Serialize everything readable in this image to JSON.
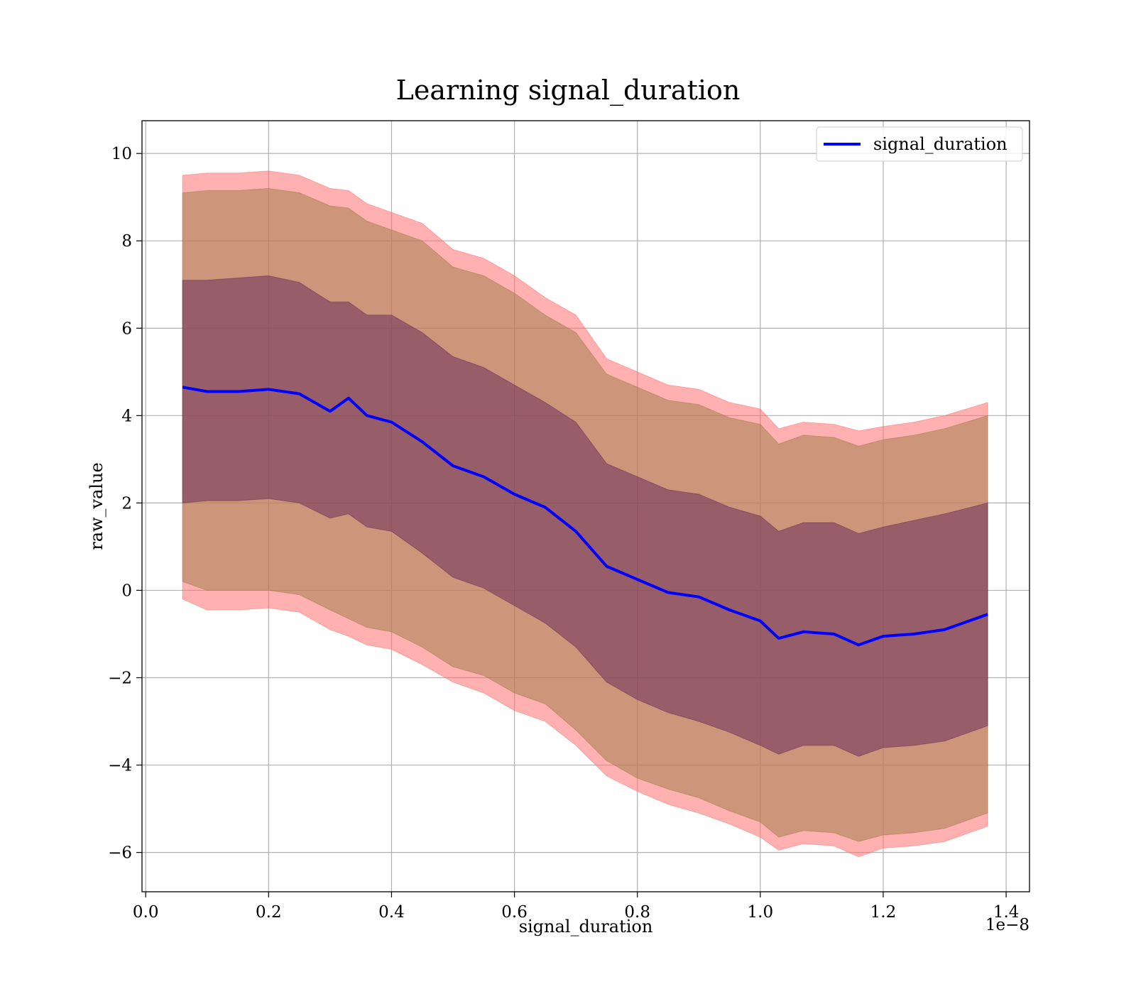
{
  "chart_data": {
    "type": "area",
    "title": "Learning signal_duration",
    "xlabel": "signal_duration",
    "ylabel": "raw_value",
    "x_offset_label": "1e−8",
    "x_scale": 1e-08,
    "xlim": [
      -6e-11,
      1.438e-08
    ],
    "ylim": [
      -6.9,
      10.75
    ],
    "x_ticks": [
      0.0,
      0.2,
      0.4,
      0.6,
      0.8,
      1.0,
      1.2,
      1.4
    ],
    "x_tick_labels": [
      "0.0",
      "0.2",
      "0.4",
      "0.6",
      "0.8",
      "1.0",
      "1.2",
      "1.4"
    ],
    "y_ticks": [
      -6,
      -4,
      -2,
      0,
      2,
      4,
      6,
      8,
      10
    ],
    "y_tick_labels": [
      "−6",
      "−4",
      "−2",
      "0",
      "2",
      "4",
      "6",
      "8",
      "10"
    ],
    "grid": true,
    "legend": {
      "position": "top-right",
      "entries": [
        "signal_duration"
      ]
    },
    "colors": {
      "line": "#0000ff",
      "outer_band": "#ff6f6f",
      "middle_band": "#a47f4e",
      "inner_band": "#6b2f5a"
    },
    "x": [
      0.06,
      0.1,
      0.15,
      0.2,
      0.25,
      0.3,
      0.33,
      0.36,
      0.4,
      0.45,
      0.5,
      0.55,
      0.6,
      0.65,
      0.7,
      0.75,
      0.8,
      0.85,
      0.9,
      0.95,
      1.0,
      1.03,
      1.07,
      1.12,
      1.16,
      1.2,
      1.25,
      1.3,
      1.37
    ],
    "series": [
      {
        "name": "signal_duration",
        "values": [
          4.65,
          4.55,
          4.55,
          4.6,
          4.5,
          4.1,
          4.4,
          4.0,
          3.85,
          3.4,
          2.85,
          2.6,
          2.2,
          1.9,
          1.35,
          0.55,
          0.25,
          -0.05,
          -0.15,
          -0.45,
          -0.7,
          -1.1,
          -0.95,
          -1.0,
          -1.25,
          -1.05,
          -1.0,
          -0.9,
          -0.55
        ]
      }
    ],
    "bands": [
      {
        "label": "outer",
        "upper": [
          9.5,
          9.55,
          9.55,
          9.6,
          9.5,
          9.2,
          9.15,
          8.85,
          8.65,
          8.4,
          7.8,
          7.6,
          7.2,
          6.7,
          6.3,
          5.3,
          5.0,
          4.7,
          4.6,
          4.3,
          4.15,
          3.7,
          3.85,
          3.8,
          3.65,
          3.75,
          3.85,
          4.0,
          4.3
        ],
        "lower": [
          -0.2,
          -0.45,
          -0.45,
          -0.4,
          -0.5,
          -0.9,
          -1.05,
          -1.25,
          -1.35,
          -1.7,
          -2.1,
          -2.35,
          -2.75,
          -3.0,
          -3.55,
          -4.25,
          -4.6,
          -4.9,
          -5.1,
          -5.35,
          -5.65,
          -5.95,
          -5.8,
          -5.85,
          -6.1,
          -5.9,
          -5.85,
          -5.75,
          -5.4
        ]
      },
      {
        "label": "middle",
        "upper": [
          9.1,
          9.15,
          9.15,
          9.2,
          9.1,
          8.8,
          8.75,
          8.45,
          8.25,
          8.0,
          7.4,
          7.2,
          6.8,
          6.3,
          5.9,
          4.95,
          4.65,
          4.35,
          4.25,
          3.95,
          3.8,
          3.35,
          3.55,
          3.5,
          3.3,
          3.45,
          3.55,
          3.7,
          4.0
        ],
        "lower": [
          0.2,
          0.0,
          0.0,
          0.0,
          -0.1,
          -0.45,
          -0.65,
          -0.85,
          -0.95,
          -1.3,
          -1.75,
          -1.95,
          -2.35,
          -2.6,
          -3.2,
          -3.9,
          -4.3,
          -4.55,
          -4.75,
          -5.05,
          -5.3,
          -5.65,
          -5.5,
          -5.55,
          -5.75,
          -5.6,
          -5.55,
          -5.45,
          -5.1
        ]
      },
      {
        "label": "inner",
        "upper": [
          7.1,
          7.1,
          7.15,
          7.2,
          7.05,
          6.6,
          6.6,
          6.3,
          6.3,
          5.9,
          5.35,
          5.1,
          4.7,
          4.3,
          3.85,
          2.9,
          2.6,
          2.3,
          2.2,
          1.9,
          1.7,
          1.35,
          1.55,
          1.55,
          1.3,
          1.45,
          1.6,
          1.75,
          2.0
        ],
        "lower": [
          2.0,
          2.05,
          2.05,
          2.1,
          2.0,
          1.65,
          1.75,
          1.45,
          1.35,
          0.85,
          0.3,
          0.05,
          -0.35,
          -0.75,
          -1.3,
          -2.1,
          -2.5,
          -2.8,
          -3.0,
          -3.25,
          -3.55,
          -3.75,
          -3.55,
          -3.55,
          -3.8,
          -3.6,
          -3.55,
          -3.45,
          -3.1
        ]
      }
    ]
  }
}
